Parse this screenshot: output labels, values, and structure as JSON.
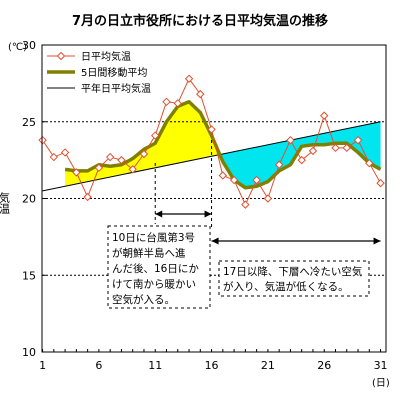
{
  "chart_data": {
    "type": "line",
    "title": "7月の日立市役所における日平均気温の推移",
    "y_unit": "(℃)",
    "ylabel": "気温",
    "x_unit": "(日)",
    "ylim": [
      10,
      30
    ],
    "yticks": [
      10,
      15,
      20,
      25,
      30
    ],
    "xlim": [
      1,
      31
    ],
    "xticks": [
      1,
      6,
      11,
      16,
      21,
      26,
      31
    ],
    "grid": "horizontal-dashed",
    "legend_position": "top-left",
    "colors": {
      "daily": "#e05030",
      "moving_avg": "#808000",
      "normal": "#000000",
      "warm_fill": "#ffff00",
      "cool_fill": "#00e5ee"
    },
    "series": [
      {
        "name": "日平均気温",
        "x": [
          1,
          2,
          3,
          4,
          5,
          6,
          7,
          8,
          9,
          10,
          11,
          12,
          13,
          14,
          15,
          16,
          17,
          18,
          19,
          20,
          21,
          22,
          23,
          24,
          25,
          26,
          27,
          28,
          29,
          30,
          31
        ],
        "values": [
          23.8,
          22.7,
          23.0,
          21.7,
          20.1,
          22.0,
          22.7,
          22.5,
          21.9,
          22.9,
          24.1,
          26.3,
          26.2,
          27.8,
          26.8,
          24.5,
          21.5,
          21.2,
          19.6,
          21.2,
          20.0,
          22.2,
          23.8,
          22.5,
          23.1,
          25.4,
          23.3,
          23.3,
          23.8,
          22.3,
          21.0
        ]
      },
      {
        "name": "5日間移動平均",
        "x": [
          3,
          4,
          5,
          6,
          7,
          8,
          9,
          10,
          11,
          12,
          13,
          14,
          15,
          16,
          17,
          18,
          19,
          20,
          21,
          22,
          23,
          24,
          25,
          26,
          27,
          28,
          29,
          30,
          31
        ],
        "values": [
          21.9,
          21.8,
          21.8,
          22.2,
          22.1,
          22.2,
          22.6,
          23.2,
          23.6,
          25.0,
          26.0,
          26.3,
          25.6,
          24.1,
          22.4,
          21.2,
          20.7,
          20.8,
          21.1,
          21.8,
          22.2,
          23.4,
          23.5,
          23.5,
          23.6,
          23.6,
          23.0,
          22.3,
          21.9
        ]
      },
      {
        "name": "平年日平均気温",
        "x": [
          1,
          31
        ],
        "values": [
          20.5,
          25.0
        ]
      }
    ],
    "annotations": [
      {
        "span": [
          11,
          16
        ],
        "lines": [
          "10日に台風第3号",
          "が朝鮮半島へ進",
          "んだ後、16日にか",
          "けて南から暖かい",
          "空気が入る。"
        ]
      },
      {
        "span": [
          16,
          31
        ],
        "lines": [
          "17日以降、下層へ冷たい空気",
          "が入り、気温が低くなる。"
        ]
      }
    ]
  }
}
